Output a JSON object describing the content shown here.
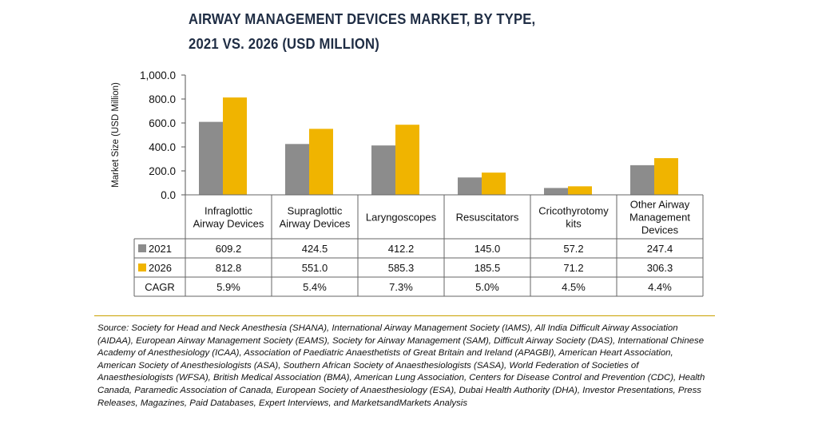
{
  "title": {
    "line1": "AIRWAY MANAGEMENT DEVICES MARKET, BY TYPE,",
    "line2": "2021 VS. 2026 (USD MILLION)"
  },
  "source_text": "Source: Society for Head and Neck Anesthesia (SHANA), International Airway Management Society (IAMS), All India Difficult Airway Association (AIDAA), European Airway Management Society (EAMS), Society for Airway Management (SAM), Difficult Airway Society (DAS), International Chinese Academy of Anesthesiology (ICAA), Association of Paediatric Anaesthetists of Great Britain and Ireland (APAGBI), American Heart Association, American Society of Anesthesiologists (ASA), Southern African Society of Anaesthesiologists (SASA), World Federation of Societies of Anaesthesiologists (WFSA), British Medical Association (BMA), American Lung Association, Centers for Disease Control and Prevention (CDC), Health Canada, Paramedic Association of Canada, European Society of Anaesthesiology (ESA), Dubai Health Authority (DHA), Investor Presentations, Press Releases, Magazines, Paid Databases, Expert Interviews, and MarketsandMarkets Analysis",
  "colors": {
    "series_2021": "#8c8c8c",
    "series_2026": "#f0b400",
    "separator": "#c9a100",
    "title": "#1f2d44"
  },
  "chart_data": {
    "type": "bar",
    "title": "AIRWAY MANAGEMENT DEVICES MARKET, BY TYPE, 2021 VS. 2026 (USD MILLION)",
    "ylabel": "Market Size (USD Million)",
    "xlabel": "",
    "ylim": [
      0,
      1000
    ],
    "yticks": [
      "0.0",
      "200.0",
      "400.0",
      "600.0",
      "800.0",
      "1,000.0"
    ],
    "ytick_values": [
      0,
      200,
      400,
      600,
      800,
      1000
    ],
    "grid": false,
    "legend": "data-table",
    "categories": [
      [
        "Infraglottic",
        "Airway Devices"
      ],
      [
        "Supraglottic",
        "Airway Devices"
      ],
      [
        "Laryngoscopes"
      ],
      [
        "Resuscitators"
      ],
      [
        "Cricothyrotomy",
        "kits"
      ],
      [
        "Other Airway",
        "Management",
        "Devices"
      ]
    ],
    "series": [
      {
        "name": "2021",
        "values": [
          609.2,
          424.5,
          412.2,
          145.0,
          57.2,
          247.4
        ],
        "labels": [
          "609.2",
          "424.5",
          "412.2",
          "145.0",
          "57.2",
          "247.4"
        ]
      },
      {
        "name": "2026",
        "values": [
          812.8,
          551.0,
          585.3,
          185.5,
          71.2,
          306.3
        ],
        "labels": [
          "812.8",
          "551.0",
          "585.3",
          "185.5",
          "71.2",
          "306.3"
        ]
      }
    ],
    "cagr": {
      "name": "CAGR",
      "values": [
        "5.9%",
        "5.4%",
        "7.3%",
        "5.0%",
        "4.5%",
        "4.4%"
      ]
    }
  }
}
